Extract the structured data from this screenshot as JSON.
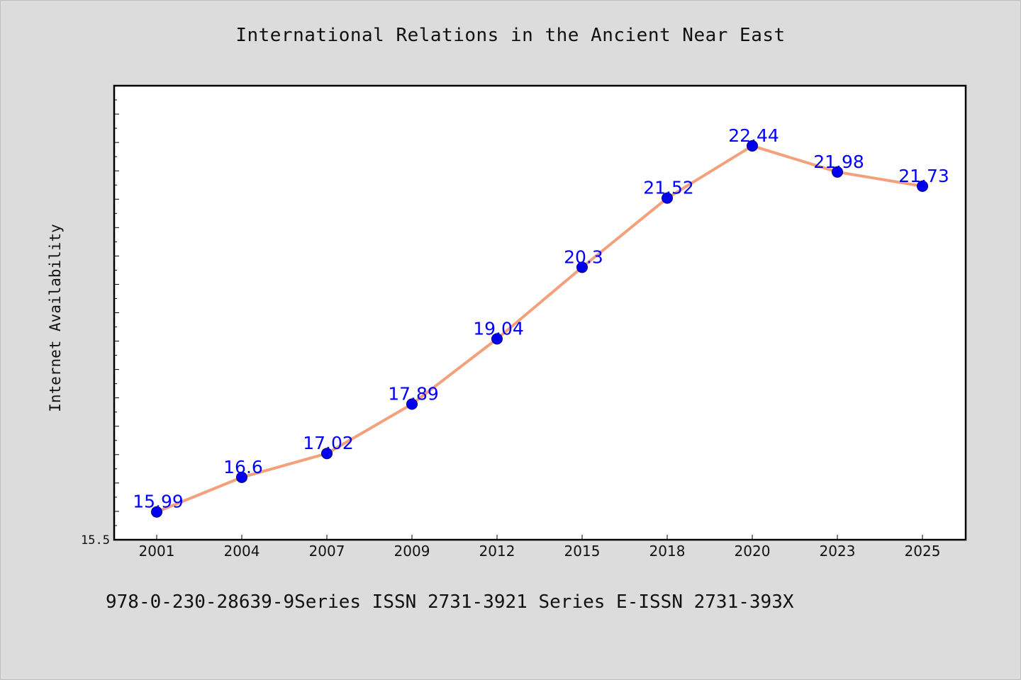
{
  "chart_data": {
    "type": "line",
    "title": "International Relations in the Ancient Near East",
    "xlabel": "",
    "ylabel": "Internet Availability",
    "categories": [
      "2001",
      "2004",
      "2007",
      "2009",
      "2012",
      "2015",
      "2018",
      "2020",
      "2023",
      "2025"
    ],
    "series": [
      {
        "values": [
          15.99,
          16.6,
          17.02,
          17.89,
          19.04,
          20.3,
          21.52,
          22.44,
          21.98,
          21.73
        ]
      }
    ],
    "data_labels": [
      "15.99",
      "16.6",
      "17.02",
      "17.89",
      "19.04",
      "20.3",
      "21.52",
      "22.44",
      "21.98",
      "21.73"
    ],
    "ylim": [
      15.5,
      23.5
    ],
    "y_tick_labels": [
      "15.5"
    ],
    "grid": false,
    "colors": {
      "line": "#f4a07a",
      "marker": "#0000ee",
      "label": "#0000ff",
      "background": "#dcdcdc",
      "plot_background": "#ffffff"
    }
  },
  "footer_note": "978-0-230-28639-9Series ISSN 2731-3921 Series E-ISSN 2731-393X"
}
